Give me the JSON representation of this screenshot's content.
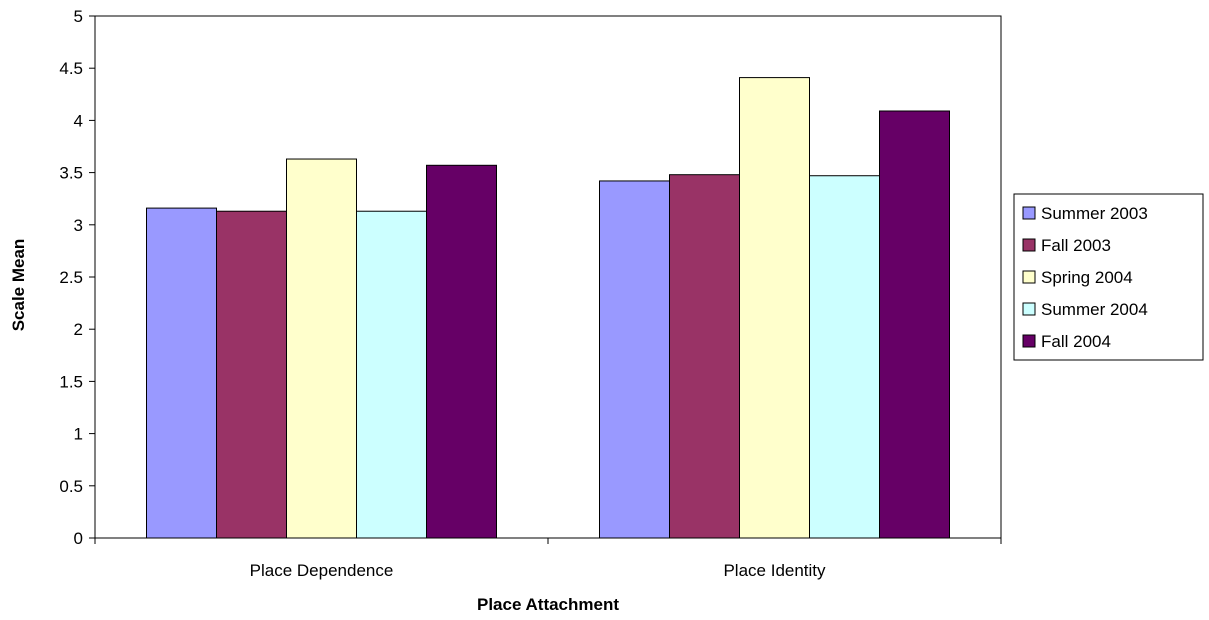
{
  "chart_data": {
    "type": "bar",
    "title": "",
    "xlabel": "Place Attachment",
    "ylabel": "Scale Mean",
    "categories": [
      "Place Dependence",
      "Place Identity"
    ],
    "ylim": [
      0,
      5
    ],
    "yticks": [
      "0",
      "0.5",
      "1",
      "1.5",
      "2",
      "2.5",
      "3",
      "3.5",
      "4",
      "4.5",
      "5"
    ],
    "grid": false,
    "legend_position": "right",
    "series": [
      {
        "name": "Summer 2003",
        "color": "#9999ff",
        "values": [
          3.16,
          3.42
        ]
      },
      {
        "name": "Fall 2003",
        "color": "#993366",
        "values": [
          3.13,
          3.48
        ]
      },
      {
        "name": "Spring 2004",
        "color": "#ffffcc",
        "values": [
          3.63,
          4.41
        ]
      },
      {
        "name": "Summer 2004",
        "color": "#ccffff",
        "values": [
          3.13,
          3.47
        ]
      },
      {
        "name": "Fall 2004",
        "color": "#660066",
        "values": [
          3.57,
          4.09
        ]
      }
    ]
  }
}
